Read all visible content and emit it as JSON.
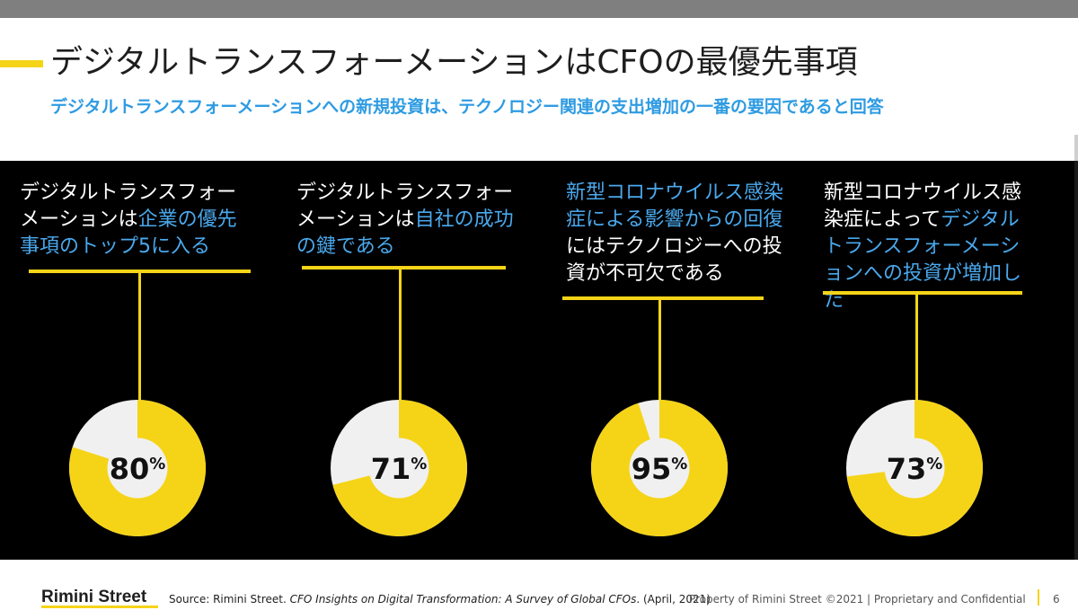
{
  "header": {
    "title": "デジタルトランスフォーメーションはCFOの最優先事項",
    "subtitle": "デジタルトランスフォーメーションへの新規投資は、テクノロジー関連の支出増加の一番の要因であると回答"
  },
  "stats": [
    {
      "text_plain": "デジタルトランスフォーメーションは",
      "text_highlight": "企業の優先事項のトップ5に入る",
      "text_after": "",
      "value_label": "80",
      "unit": "%"
    },
    {
      "text_plain": "デジタルトランスフォーメーションは",
      "text_highlight": "自社の成功の鍵である",
      "text_after": "",
      "value_label": "71",
      "unit": "%"
    },
    {
      "text_plain": "",
      "text_highlight": "新型コロナウイルス感染症による影響からの回復",
      "text_after": "にはテクノロジーへの投資が不可欠である",
      "value_label": "95",
      "unit": "%"
    },
    {
      "text_plain": "新型コロナウイルス感染症によって",
      "text_highlight": "デジタルトランスフォーメーションへの投資が増加した",
      "text_after": "",
      "value_label": "73",
      "unit": "%"
    }
  ],
  "chart_data": {
    "type": "pie",
    "style": "donut",
    "categories": [
      "デジタルトランスフォーメーションは企業の優先事項のトップ5に入る",
      "デジタルトランスフォーメーションは自社の成功の鍵である",
      "新型コロナウイルス感染症による影響からの回復にはテクノロジーへの投資が不可欠である",
      "新型コロナウイルス感染症によってデジタルトランスフォーメーションへの投資が増加した"
    ],
    "values": [
      80,
      71,
      95,
      73
    ],
    "unit": "%",
    "max": 100,
    "colors": {
      "filled": "#f5d417",
      "remainder": "#f0f0f0",
      "highlight_text": "#4aa8ec",
      "accent": "#f5d417"
    }
  },
  "footer": {
    "logo": "Rimini Street",
    "source_prefix": "Source: Rimini Street. ",
    "source_title": "CFO Insights on Digital Transformation: A Survey of Global CFOs",
    "source_suffix": ". (April, 2021)",
    "confidential": "Property of Rimini Street ©2021  |  Proprietary and Confidential",
    "page_number": "6"
  }
}
